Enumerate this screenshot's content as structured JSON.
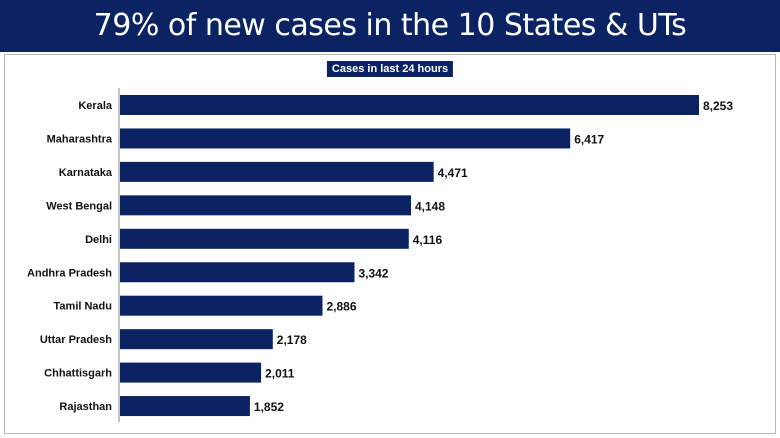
{
  "header": {
    "title": "79% of new cases in the 10 States & UTs"
  },
  "chart_data": {
    "type": "bar",
    "orientation": "horizontal",
    "title": "Cases in last 24 hours",
    "xlabel": "",
    "ylabel": "",
    "categories": [
      "Kerala",
      "Maharashtra",
      "Karnataka",
      "West Bengal",
      "Delhi",
      "Andhra Pradesh",
      "Tamil Nadu",
      "Uttar Pradesh",
      "Chhattisgarh",
      "Rajasthan"
    ],
    "values": [
      8253,
      6417,
      4471,
      4148,
      4116,
      3342,
      2886,
      2178,
      2011,
      1852
    ],
    "value_labels": [
      "8,253",
      "6,417",
      "4,471",
      "4,148",
      "4,116",
      "3,342",
      "2,886",
      "2,178",
      "2,011",
      "1,852"
    ],
    "bar_color": "#0b2263",
    "grid": false
  }
}
